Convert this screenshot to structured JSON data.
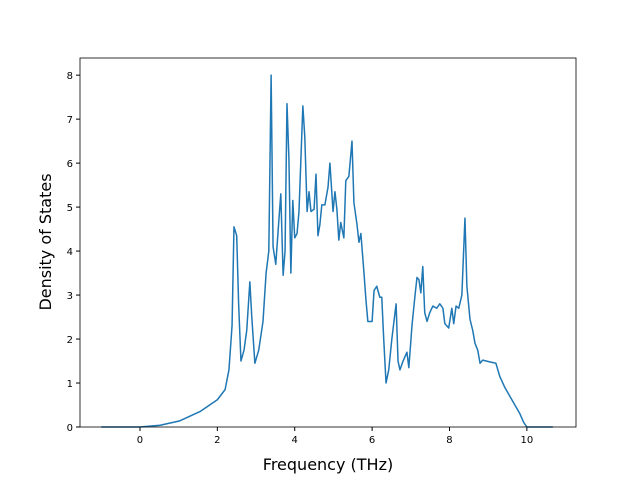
{
  "chart_data": {
    "type": "line",
    "xlabel": "Frequency (THz)",
    "ylabel": "Density of States",
    "xlim": [
      -1.55,
      11.27
    ],
    "ylim": [
      0,
      8.39
    ],
    "xticks": [
      0,
      2,
      4,
      6,
      8,
      10
    ],
    "yticks": [
      0,
      1,
      2,
      3,
      4,
      5,
      6,
      7,
      8
    ],
    "grid": false,
    "series": [
      {
        "color": "#1f77b4",
        "x": [
          -1.0,
          0,
          0.52,
          1.03,
          1.55,
          2.0,
          2.2,
          2.3,
          2.38,
          2.43,
          2.5,
          2.55,
          2.61,
          2.69,
          2.76,
          2.84,
          2.89,
          2.97,
          3.07,
          3.18,
          3.26,
          3.33,
          3.39,
          3.44,
          3.51,
          3.59,
          3.64,
          3.7,
          3.75,
          3.8,
          3.85,
          3.9,
          3.95,
          4.0,
          4.06,
          4.11,
          4.21,
          4.26,
          4.32,
          4.37,
          4.42,
          4.5,
          4.55,
          4.6,
          4.65,
          4.7,
          4.78,
          4.86,
          4.91,
          4.99,
          5.04,
          5.09,
          5.14,
          5.19,
          5.27,
          5.32,
          5.4,
          5.48,
          5.53,
          5.61,
          5.66,
          5.71,
          5.79,
          5.84,
          5.89,
          6.0,
          6.05,
          6.12,
          6.2,
          6.25,
          6.3,
          6.36,
          6.43,
          6.51,
          6.62,
          6.67,
          6.72,
          6.8,
          6.9,
          6.95,
          7.03,
          7.11,
          7.16,
          7.21,
          7.26,
          7.31,
          7.36,
          7.42,
          7.49,
          7.57,
          7.67,
          7.75,
          7.83,
          7.88,
          7.98,
          8.06,
          8.11,
          8.17,
          8.24,
          8.32,
          8.4,
          8.45,
          8.53,
          8.6,
          8.66,
          8.73,
          8.79,
          8.86,
          9.04,
          9.2,
          9.3,
          9.43,
          9.56,
          9.69,
          9.82,
          9.92,
          10.0,
          10.67
        ],
        "values": [
          0,
          0,
          0.04,
          0.14,
          0.35,
          0.62,
          0.85,
          1.3,
          2.3,
          4.55,
          4.35,
          2.8,
          1.5,
          1.75,
          2.2,
          3.3,
          2.5,
          1.45,
          1.75,
          2.4,
          3.5,
          4.0,
          8.0,
          4.1,
          3.7,
          4.7,
          5.3,
          3.45,
          4.0,
          7.35,
          6.1,
          3.5,
          5.15,
          4.3,
          4.4,
          4.9,
          7.3,
          6.6,
          4.9,
          5.35,
          4.9,
          4.95,
          5.75,
          4.35,
          4.6,
          5.05,
          5.05,
          5.45,
          6.0,
          4.9,
          5.35,
          4.95,
          4.25,
          4.65,
          4.3,
          5.6,
          5.7,
          6.5,
          5.1,
          4.6,
          4.2,
          4.4,
          3.5,
          2.9,
          2.4,
          2.4,
          3.1,
          3.2,
          2.95,
          2.95,
          2.0,
          1.0,
          1.3,
          2.0,
          2.8,
          1.5,
          1.3,
          1.5,
          1.7,
          1.35,
          2.3,
          3.0,
          3.4,
          3.35,
          3.05,
          3.65,
          2.6,
          2.4,
          2.6,
          2.75,
          2.7,
          2.8,
          2.7,
          2.35,
          2.25,
          2.7,
          2.35,
          2.75,
          2.7,
          3.0,
          4.75,
          3.2,
          2.45,
          2.2,
          1.9,
          1.75,
          1.45,
          1.52,
          1.48,
          1.45,
          1.15,
          0.9,
          0.7,
          0.5,
          0.3,
          0.1,
          0,
          0
        ]
      }
    ]
  }
}
